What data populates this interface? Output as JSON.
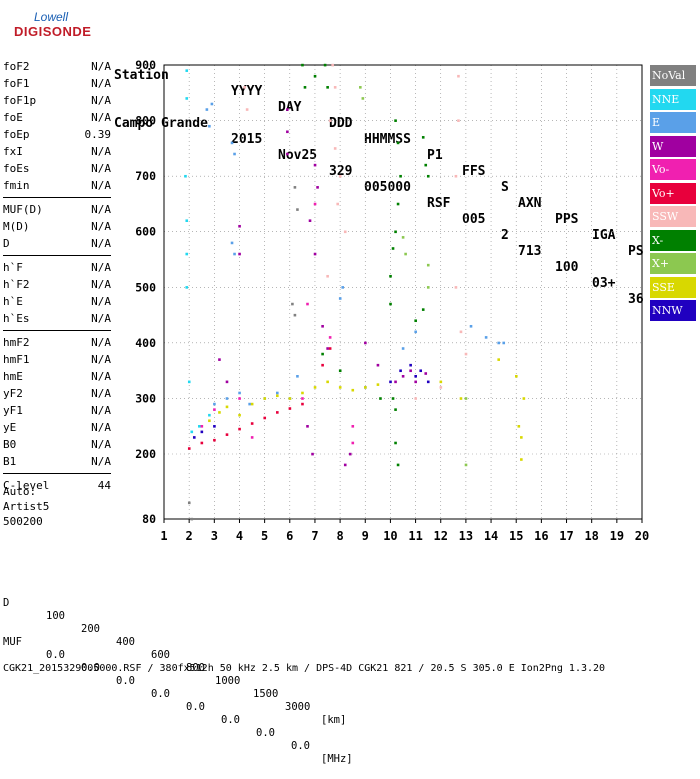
{
  "logo": {
    "line1": "Lowell",
    "line2": "DIGISONDE"
  },
  "header": {
    "labels": [
      "Station",
      "YYYY",
      "DAY",
      "DDD",
      "HHMMSS",
      "P1",
      "FFS",
      "S",
      "AXN",
      "PPS",
      "IGA",
      "PS"
    ],
    "values": [
      "Campo Grande",
      "2015",
      "Nov25",
      "329",
      "005000",
      "RSF",
      "005",
      "2",
      "713",
      "100",
      "03+",
      "36"
    ]
  },
  "parameters": [
    [
      {
        "name": "foF2",
        "value": "N/A"
      },
      {
        "name": "foF1",
        "value": "N/A"
      },
      {
        "name": "foF1p",
        "value": "N/A"
      },
      {
        "name": "foE",
        "value": "N/A"
      },
      {
        "name": "foEp",
        "value": "0.39"
      },
      {
        "name": "fxI",
        "value": "N/A"
      },
      {
        "name": "foEs",
        "value": "N/A"
      },
      {
        "name": "fmin",
        "value": "N/A"
      }
    ],
    [
      {
        "name": "MUF(D)",
        "value": "N/A"
      },
      {
        "name": "M(D)",
        "value": "N/A"
      },
      {
        "name": "D",
        "value": "N/A"
      }
    ],
    [
      {
        "name": "h`F",
        "value": "N/A"
      },
      {
        "name": "h`F2",
        "value": "N/A"
      },
      {
        "name": "h`E",
        "value": "N/A"
      },
      {
        "name": "h`Es",
        "value": "N/A"
      }
    ],
    [
      {
        "name": "hmF2",
        "value": "N/A"
      },
      {
        "name": "hmF1",
        "value": "N/A"
      },
      {
        "name": "hmE",
        "value": "N/A"
      },
      {
        "name": "yF2",
        "value": "N/A"
      },
      {
        "name": "yF1",
        "value": "N/A"
      },
      {
        "name": "yE",
        "value": "N/A"
      },
      {
        "name": "B0",
        "value": "N/A"
      },
      {
        "name": "B1",
        "value": "N/A"
      }
    ],
    [
      {
        "name": "C-level",
        "value": "44"
      }
    ]
  ],
  "autoscaling": {
    "line1": "Auto:",
    "line2": "Artist5",
    "line3": "500200"
  },
  "legend": [
    {
      "label": "NoVal",
      "color": "#808080"
    },
    {
      "label": "NNE",
      "color": "#22d8f0"
    },
    {
      "label": "E",
      "color": "#5aa0e8"
    },
    {
      "label": "W",
      "color": "#a000a0"
    },
    {
      "label": "Vo-",
      "color": "#f020b0"
    },
    {
      "label": "Vo+",
      "color": "#e8003c"
    },
    {
      "label": "SSW",
      "color": "#f8b8b8"
    },
    {
      "label": "X-",
      "color": "#008000"
    },
    {
      "label": "X+",
      "color": "#8cc850"
    },
    {
      "label": "SSE",
      "color": "#d8d800"
    },
    {
      "label": "NNW",
      "color": "#2000c0"
    }
  ],
  "footer": {
    "d_label": "D",
    "d_values": [
      "100",
      "200",
      "400",
      "600",
      "800",
      "1000",
      "1500",
      "3000"
    ],
    "d_unit": "[km]",
    "muf_label": "MUF",
    "muf_values": [
      "0.0",
      "0.0",
      "0.0",
      "0.0",
      "0.0",
      "0.0",
      "0.0",
      "0.0"
    ],
    "muf_unit": "[MHz]",
    "info": "CGK21_2015329005000.RSF / 380fx512h 50 kHz 2.5 km / DPS-4D CGK21 821 / 20.5 S 305.0 E Ion2Png 1.3.20"
  },
  "chart_data": {
    "type": "scatter",
    "title": "",
    "xlabel": "",
    "ylabel": "",
    "xlim": [
      1,
      20
    ],
    "ylim": [
      80,
      900
    ],
    "xticks": [
      1,
      2,
      3,
      4,
      5,
      6,
      7,
      8,
      9,
      10,
      11,
      12,
      13,
      14,
      15,
      16,
      17,
      18,
      19,
      20
    ],
    "yticks": [
      80,
      200,
      300,
      400,
      500,
      600,
      700,
      800,
      900
    ],
    "grid": true,
    "legend_position": "right",
    "series": [
      {
        "name": "NNE",
        "color": "#22d8f0",
        "points": [
          [
            1.9,
            890
          ],
          [
            1.9,
            840
          ],
          [
            1.9,
            560
          ],
          [
            1.9,
            500
          ],
          [
            2.0,
            330
          ],
          [
            2.1,
            240
          ],
          [
            2.4,
            250
          ],
          [
            2.8,
            270
          ],
          [
            1.85,
            700
          ],
          [
            1.9,
            620
          ]
        ]
      },
      {
        "name": "E",
        "color": "#5aa0e8",
        "points": [
          [
            2.7,
            820
          ],
          [
            2.8,
            790
          ],
          [
            2.9,
            830
          ],
          [
            3.7,
            760
          ],
          [
            3.8,
            740
          ],
          [
            3.7,
            580
          ],
          [
            3.8,
            560
          ],
          [
            3.0,
            290
          ],
          [
            3.5,
            300
          ],
          [
            4.0,
            310
          ],
          [
            4.4,
            290
          ],
          [
            5.0,
            300
          ],
          [
            5.5,
            310
          ],
          [
            6.0,
            300
          ],
          [
            6.3,
            340
          ],
          [
            8.0,
            480
          ],
          [
            8.1,
            500
          ],
          [
            9.0,
            320
          ],
          [
            10.5,
            390
          ],
          [
            11.0,
            420
          ],
          [
            13.2,
            430
          ],
          [
            13.8,
            410
          ],
          [
            14.3,
            400
          ],
          [
            14.5,
            400
          ]
        ]
      },
      {
        "name": "W",
        "color": "#a000a0",
        "points": [
          [
            3.2,
            370
          ],
          [
            3.5,
            330
          ],
          [
            4.0,
            610
          ],
          [
            4.0,
            560
          ],
          [
            5.9,
            820
          ],
          [
            5.9,
            780
          ],
          [
            5.9,
            740
          ],
          [
            7.0,
            720
          ],
          [
            7.1,
            680
          ],
          [
            6.8,
            620
          ],
          [
            7.0,
            560
          ],
          [
            7.3,
            430
          ],
          [
            7.5,
            390
          ],
          [
            9.0,
            400
          ],
          [
            9.5,
            360
          ],
          [
            10.5,
            340
          ],
          [
            10.8,
            350
          ],
          [
            11.0,
            330
          ],
          [
            11.4,
            345
          ],
          [
            10.2,
            330
          ],
          [
            6.7,
            250
          ],
          [
            6.9,
            200
          ],
          [
            8.2,
            180
          ],
          [
            8.4,
            200
          ]
        ]
      },
      {
        "name": "Vo-",
        "color": "#f020b0",
        "points": [
          [
            2.5,
            250
          ],
          [
            3.0,
            280
          ],
          [
            4.0,
            300
          ],
          [
            4.5,
            230
          ],
          [
            6.5,
            300
          ],
          [
            6.7,
            470
          ],
          [
            7.0,
            650
          ],
          [
            7.6,
            410
          ],
          [
            8.5,
            250
          ],
          [
            8.5,
            220
          ]
        ]
      },
      {
        "name": "Vo+",
        "color": "#e8003c",
        "points": [
          [
            2.0,
            210
          ],
          [
            2.5,
            220
          ],
          [
            3.0,
            225
          ],
          [
            3.5,
            235
          ],
          [
            4.0,
            245
          ],
          [
            4.5,
            255
          ],
          [
            5.0,
            265
          ],
          [
            5.5,
            275
          ],
          [
            6.0,
            282
          ],
          [
            6.5,
            290
          ],
          [
            7.3,
            360
          ],
          [
            7.6,
            390
          ]
        ]
      },
      {
        "name": "SSW",
        "color": "#f8b8b8",
        "points": [
          [
            4.2,
            860
          ],
          [
            4.3,
            820
          ],
          [
            7.7,
            900
          ],
          [
            7.8,
            860
          ],
          [
            7.6,
            800
          ],
          [
            7.8,
            750
          ],
          [
            8.0,
            700
          ],
          [
            7.9,
            650
          ],
          [
            8.2,
            600
          ],
          [
            7.5,
            520
          ],
          [
            12.7,
            880
          ],
          [
            12.7,
            800
          ],
          [
            12.6,
            700
          ],
          [
            12.6,
            500
          ],
          [
            12.8,
            420
          ],
          [
            13.0,
            380
          ],
          [
            11.0,
            300
          ],
          [
            12.0,
            320
          ]
        ]
      },
      {
        "name": "X-",
        "color": "#008000",
        "points": [
          [
            6.5,
            900
          ],
          [
            6.6,
            860
          ],
          [
            7.0,
            880
          ],
          [
            7.4,
            900
          ],
          [
            7.5,
            860
          ],
          [
            10.2,
            800
          ],
          [
            10.3,
            760
          ],
          [
            10.4,
            700
          ],
          [
            10.3,
            650
          ],
          [
            10.2,
            600
          ],
          [
            10.1,
            570
          ],
          [
            10.0,
            520
          ],
          [
            10.0,
            470
          ],
          [
            11.3,
            770
          ],
          [
            11.4,
            720
          ],
          [
            11.5,
            700
          ],
          [
            11.0,
            440
          ],
          [
            11.3,
            460
          ],
          [
            7.3,
            380
          ],
          [
            8.0,
            350
          ],
          [
            10.1,
            300
          ],
          [
            10.2,
            280
          ],
          [
            10.2,
            220
          ],
          [
            10.3,
            180
          ],
          [
            9.6,
            300
          ]
        ]
      },
      {
        "name": "X+",
        "color": "#8cc850",
        "points": [
          [
            8.8,
            860
          ],
          [
            8.9,
            840
          ],
          [
            10.5,
            590
          ],
          [
            10.6,
            560
          ],
          [
            11.5,
            540
          ],
          [
            11.5,
            500
          ],
          [
            13.0,
            300
          ],
          [
            13.0,
            180
          ]
        ]
      },
      {
        "name": "SSE",
        "color": "#d8d800",
        "points": [
          [
            2.8,
            260
          ],
          [
            3.2,
            275
          ],
          [
            3.5,
            285
          ],
          [
            4.0,
            270
          ],
          [
            4.5,
            290
          ],
          [
            5.0,
            300
          ],
          [
            5.5,
            305
          ],
          [
            6.0,
            300
          ],
          [
            6.5,
            310
          ],
          [
            7.0,
            320
          ],
          [
            7.5,
            330
          ],
          [
            8.0,
            320
          ],
          [
            8.5,
            315
          ],
          [
            9.0,
            320
          ],
          [
            9.5,
            325
          ],
          [
            12.0,
            330
          ],
          [
            12.8,
            300
          ],
          [
            14.3,
            370
          ],
          [
            15.0,
            340
          ],
          [
            15.3,
            300
          ],
          [
            15.1,
            250
          ],
          [
            15.2,
            230
          ],
          [
            15.2,
            190
          ]
        ]
      },
      {
        "name": "NNW",
        "color": "#2000c0",
        "points": [
          [
            2.2,
            230
          ],
          [
            2.5,
            240
          ],
          [
            3.0,
            250
          ],
          [
            10.0,
            330
          ],
          [
            10.4,
            350
          ],
          [
            10.8,
            360
          ],
          [
            11.0,
            340
          ],
          [
            11.2,
            350
          ],
          [
            11.5,
            330
          ]
        ]
      },
      {
        "name": "NoVal",
        "color": "#808080",
        "points": [
          [
            6.2,
            680
          ],
          [
            6.3,
            640
          ],
          [
            6.1,
            470
          ],
          [
            6.2,
            450
          ],
          [
            2.1,
            80
          ],
          [
            2.0,
            110
          ]
        ]
      }
    ]
  }
}
